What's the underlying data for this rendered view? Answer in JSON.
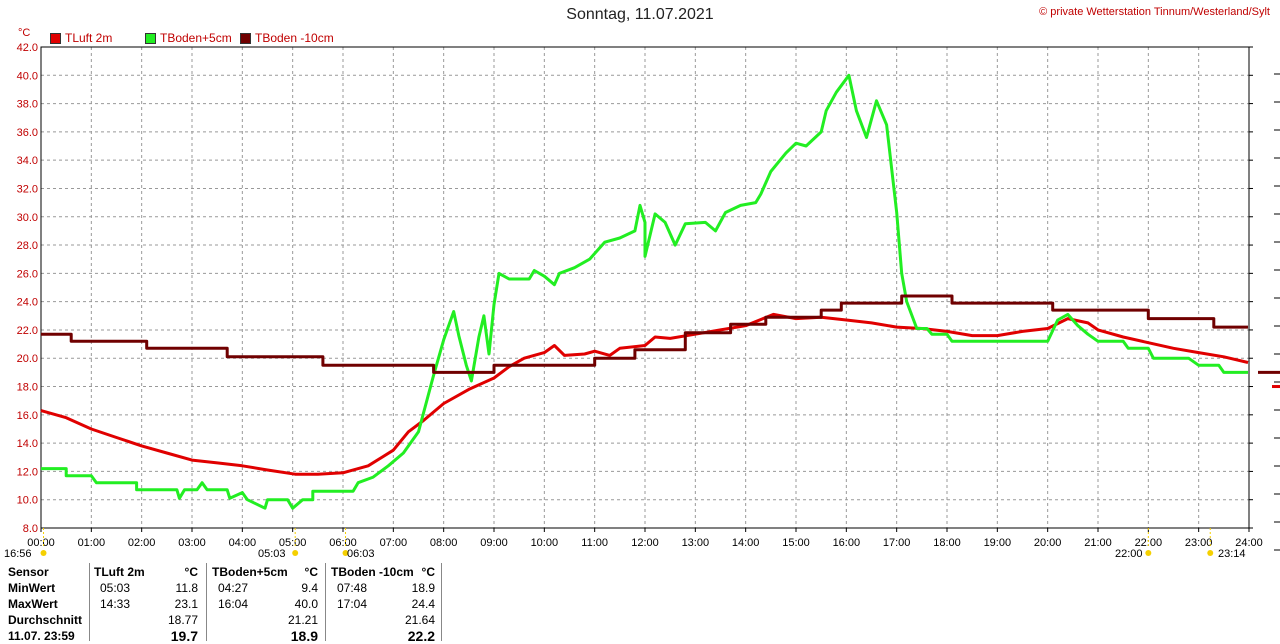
{
  "header": {
    "title": "Sonntag, 11.07.2021",
    "copyright": "© private Wetterstation Tinnum/Westerland/Sylt"
  },
  "colors": {
    "tluft": "#e00000",
    "tboden5": "#22ee22",
    "tboden10": "#700000",
    "axis": "#c00000"
  },
  "chart_data": {
    "type": "line",
    "ylabel": "°C",
    "ylim": [
      8.0,
      42.0
    ],
    "yticks": [
      "8.0",
      "10.0",
      "12.0",
      "14.0",
      "16.0",
      "18.0",
      "20.0",
      "22.0",
      "24.0",
      "26.0",
      "28.0",
      "30.0",
      "32.0",
      "34.0",
      "36.0",
      "38.0",
      "40.0",
      "42.0"
    ],
    "xlim": [
      0,
      24
    ],
    "xticks": [
      "00:00",
      "01:00",
      "02:00",
      "03:00",
      "04:00",
      "05:00",
      "06:00",
      "07:00",
      "08:00",
      "09:00",
      "10:00",
      "11:00",
      "12:00",
      "13:00",
      "14:00",
      "15:00",
      "16:00",
      "17:00",
      "18:00",
      "19:00",
      "20:00",
      "21:00",
      "22:00",
      "23:00",
      "24:00"
    ],
    "grid": true,
    "sun_markers": [
      {
        "label": "16:56"
      },
      {
        "label": "05:03"
      },
      {
        "label": "06:03"
      },
      {
        "label": "22:00"
      },
      {
        "label": "23:14"
      }
    ],
    "series": [
      {
        "name": "TLuft 2m",
        "color": "#e00000",
        "step": false,
        "points": [
          [
            0,
            16.3
          ],
          [
            0.5,
            15.8
          ],
          [
            1,
            15.0
          ],
          [
            1.5,
            14.4
          ],
          [
            2,
            13.8
          ],
          [
            2.5,
            13.3
          ],
          [
            3,
            12.8
          ],
          [
            3.5,
            12.6
          ],
          [
            4,
            12.4
          ],
          [
            4.5,
            12.1
          ],
          [
            5.05,
            11.8
          ],
          [
            5.5,
            11.8
          ],
          [
            6,
            11.9
          ],
          [
            6.5,
            12.4
          ],
          [
            7,
            13.5
          ],
          [
            7.3,
            14.8
          ],
          [
            7.6,
            15.6
          ],
          [
            8,
            16.8
          ],
          [
            8.5,
            17.8
          ],
          [
            9,
            18.6
          ],
          [
            9.3,
            19.4
          ],
          [
            9.6,
            20.0
          ],
          [
            10,
            20.4
          ],
          [
            10.2,
            20.9
          ],
          [
            10.4,
            20.2
          ],
          [
            10.8,
            20.3
          ],
          [
            11,
            20.5
          ],
          [
            11.3,
            20.2
          ],
          [
            11.5,
            20.7
          ],
          [
            12,
            20.9
          ],
          [
            12.2,
            21.5
          ],
          [
            12.5,
            21.4
          ],
          [
            13,
            21.7
          ],
          [
            13.5,
            22.0
          ],
          [
            14,
            22.3
          ],
          [
            14.55,
            23.1
          ],
          [
            15,
            22.8
          ],
          [
            15.5,
            22.9
          ],
          [
            16,
            22.7
          ],
          [
            16.5,
            22.5
          ],
          [
            17,
            22.2
          ],
          [
            17.5,
            22.1
          ],
          [
            18,
            21.9
          ],
          [
            18.5,
            21.6
          ],
          [
            19,
            21.6
          ],
          [
            19.5,
            21.9
          ],
          [
            20,
            22.1
          ],
          [
            20.4,
            22.8
          ],
          [
            20.8,
            22.5
          ],
          [
            21,
            22.0
          ],
          [
            21.5,
            21.5
          ],
          [
            22,
            21.1
          ],
          [
            22.5,
            20.7
          ],
          [
            23,
            20.4
          ],
          [
            23.5,
            20.1
          ],
          [
            23.98,
            19.7
          ]
        ]
      },
      {
        "name": "TBoden+5cm",
        "color": "#22ee22",
        "step": false,
        "points": [
          [
            0,
            12.2
          ],
          [
            0.5,
            12.2
          ],
          [
            0.5,
            11.7
          ],
          [
            1.0,
            11.7
          ],
          [
            1.1,
            11.2
          ],
          [
            1.9,
            11.2
          ],
          [
            1.9,
            10.7
          ],
          [
            2.7,
            10.7
          ],
          [
            2.75,
            10.1
          ],
          [
            2.85,
            10.7
          ],
          [
            3.1,
            10.7
          ],
          [
            3.2,
            11.2
          ],
          [
            3.3,
            10.7
          ],
          [
            3.7,
            10.7
          ],
          [
            3.75,
            10.1
          ],
          [
            4.0,
            10.5
          ],
          [
            4.1,
            10.0
          ],
          [
            4.45,
            9.4
          ],
          [
            4.5,
            10.0
          ],
          [
            4.9,
            10.0
          ],
          [
            5.0,
            9.4
          ],
          [
            5.2,
            10.0
          ],
          [
            5.4,
            10.0
          ],
          [
            5.4,
            10.6
          ],
          [
            6.2,
            10.6
          ],
          [
            6.3,
            11.2
          ],
          [
            6.6,
            11.6
          ],
          [
            6.9,
            12.4
          ],
          [
            7.2,
            13.3
          ],
          [
            7.5,
            14.8
          ],
          [
            7.8,
            18.8
          ],
          [
            8.0,
            21.3
          ],
          [
            8.2,
            23.3
          ],
          [
            8.3,
            21.6
          ],
          [
            8.45,
            19.5
          ],
          [
            8.55,
            18.4
          ],
          [
            8.7,
            21.5
          ],
          [
            8.8,
            23.0
          ],
          [
            8.9,
            20.3
          ],
          [
            9.0,
            23.8
          ],
          [
            9.1,
            26.0
          ],
          [
            9.3,
            25.6
          ],
          [
            9.7,
            25.6
          ],
          [
            9.8,
            26.2
          ],
          [
            10.0,
            25.8
          ],
          [
            10.2,
            25.2
          ],
          [
            10.3,
            26.0
          ],
          [
            10.6,
            26.4
          ],
          [
            10.9,
            27.0
          ],
          [
            11.2,
            28.2
          ],
          [
            11.5,
            28.5
          ],
          [
            11.8,
            29.0
          ],
          [
            11.9,
            30.8
          ],
          [
            12.0,
            29.6
          ],
          [
            12.0,
            27.2
          ],
          [
            12.2,
            30.2
          ],
          [
            12.4,
            29.6
          ],
          [
            12.6,
            28.0
          ],
          [
            12.8,
            29.5
          ],
          [
            13.2,
            29.6
          ],
          [
            13.4,
            29.0
          ],
          [
            13.6,
            30.3
          ],
          [
            13.9,
            30.8
          ],
          [
            14.2,
            31.0
          ],
          [
            14.3,
            31.6
          ],
          [
            14.5,
            33.2
          ],
          [
            14.8,
            34.5
          ],
          [
            15.0,
            35.2
          ],
          [
            15.2,
            35.0
          ],
          [
            15.5,
            36.0
          ],
          [
            15.6,
            37.5
          ],
          [
            15.8,
            38.8
          ],
          [
            16.05,
            40.0
          ],
          [
            16.2,
            37.5
          ],
          [
            16.4,
            35.6
          ],
          [
            16.6,
            38.2
          ],
          [
            16.8,
            36.5
          ],
          [
            17.0,
            30.3
          ],
          [
            17.1,
            26.0
          ],
          [
            17.2,
            24.0
          ],
          [
            17.4,
            22.1
          ],
          [
            17.6,
            22.1
          ],
          [
            17.7,
            21.7
          ],
          [
            18.0,
            21.7
          ],
          [
            18.1,
            21.2
          ],
          [
            19.5,
            21.2
          ],
          [
            20.0,
            21.2
          ],
          [
            20.2,
            22.7
          ],
          [
            20.4,
            23.1
          ],
          [
            20.6,
            22.3
          ],
          [
            20.8,
            21.7
          ],
          [
            21.0,
            21.2
          ],
          [
            21.5,
            21.2
          ],
          [
            21.6,
            20.7
          ],
          [
            22.0,
            20.7
          ],
          [
            22.1,
            20.0
          ],
          [
            22.8,
            20.0
          ],
          [
            23.0,
            19.5
          ],
          [
            23.4,
            19.5
          ],
          [
            23.5,
            19.0
          ],
          [
            23.98,
            19.0
          ]
        ]
      },
      {
        "name": "TBoden -10cm",
        "color": "#700000",
        "step": true,
        "points": [
          [
            0,
            21.7
          ],
          [
            0.6,
            21.2
          ],
          [
            2.1,
            20.7
          ],
          [
            3.7,
            20.1
          ],
          [
            5.6,
            19.5
          ],
          [
            7.8,
            19.0
          ],
          [
            9.0,
            19.5
          ],
          [
            11.0,
            20.0
          ],
          [
            11.8,
            20.6
          ],
          [
            12.8,
            21.8
          ],
          [
            13.7,
            22.4
          ],
          [
            14.4,
            22.9
          ],
          [
            15.5,
            23.4
          ],
          [
            15.9,
            23.9
          ],
          [
            17.1,
            24.4
          ],
          [
            18.1,
            23.9
          ],
          [
            20.1,
            23.4
          ],
          [
            22.0,
            22.8
          ],
          [
            23.3,
            22.2
          ],
          [
            23.98,
            22.2
          ]
        ]
      }
    ],
    "stats": {
      "headers": [
        "Sensor",
        "TLuft 2m",
        "°C",
        "TBoden+5cm",
        "°C",
        "TBoden -10cm",
        "°C"
      ],
      "rows": [
        {
          "label": "MinWert",
          "c1t": "05:03",
          "c1v": "11.8",
          "c2t": "04:27",
          "c2v": "9.4",
          "c3t": "07:48",
          "c3v": "18.9"
        },
        {
          "label": "MaxWert",
          "c1t": "14:33",
          "c1v": "23.1",
          "c2t": "16:04",
          "c2v": "40.0",
          "c3t": "17:04",
          "c3v": "24.4"
        },
        {
          "label": "Durchschnitt",
          "c1t": "",
          "c1v": "18.77",
          "c2t": "",
          "c2v": "21.21",
          "c3t": "",
          "c3v": "21.64"
        },
        {
          "label": "11.07. 23:59",
          "c1t": "",
          "c1v": "19.7",
          "c2t": "",
          "c2v": "18.9",
          "c3t": "",
          "c3v": "22.2"
        }
      ]
    }
  }
}
